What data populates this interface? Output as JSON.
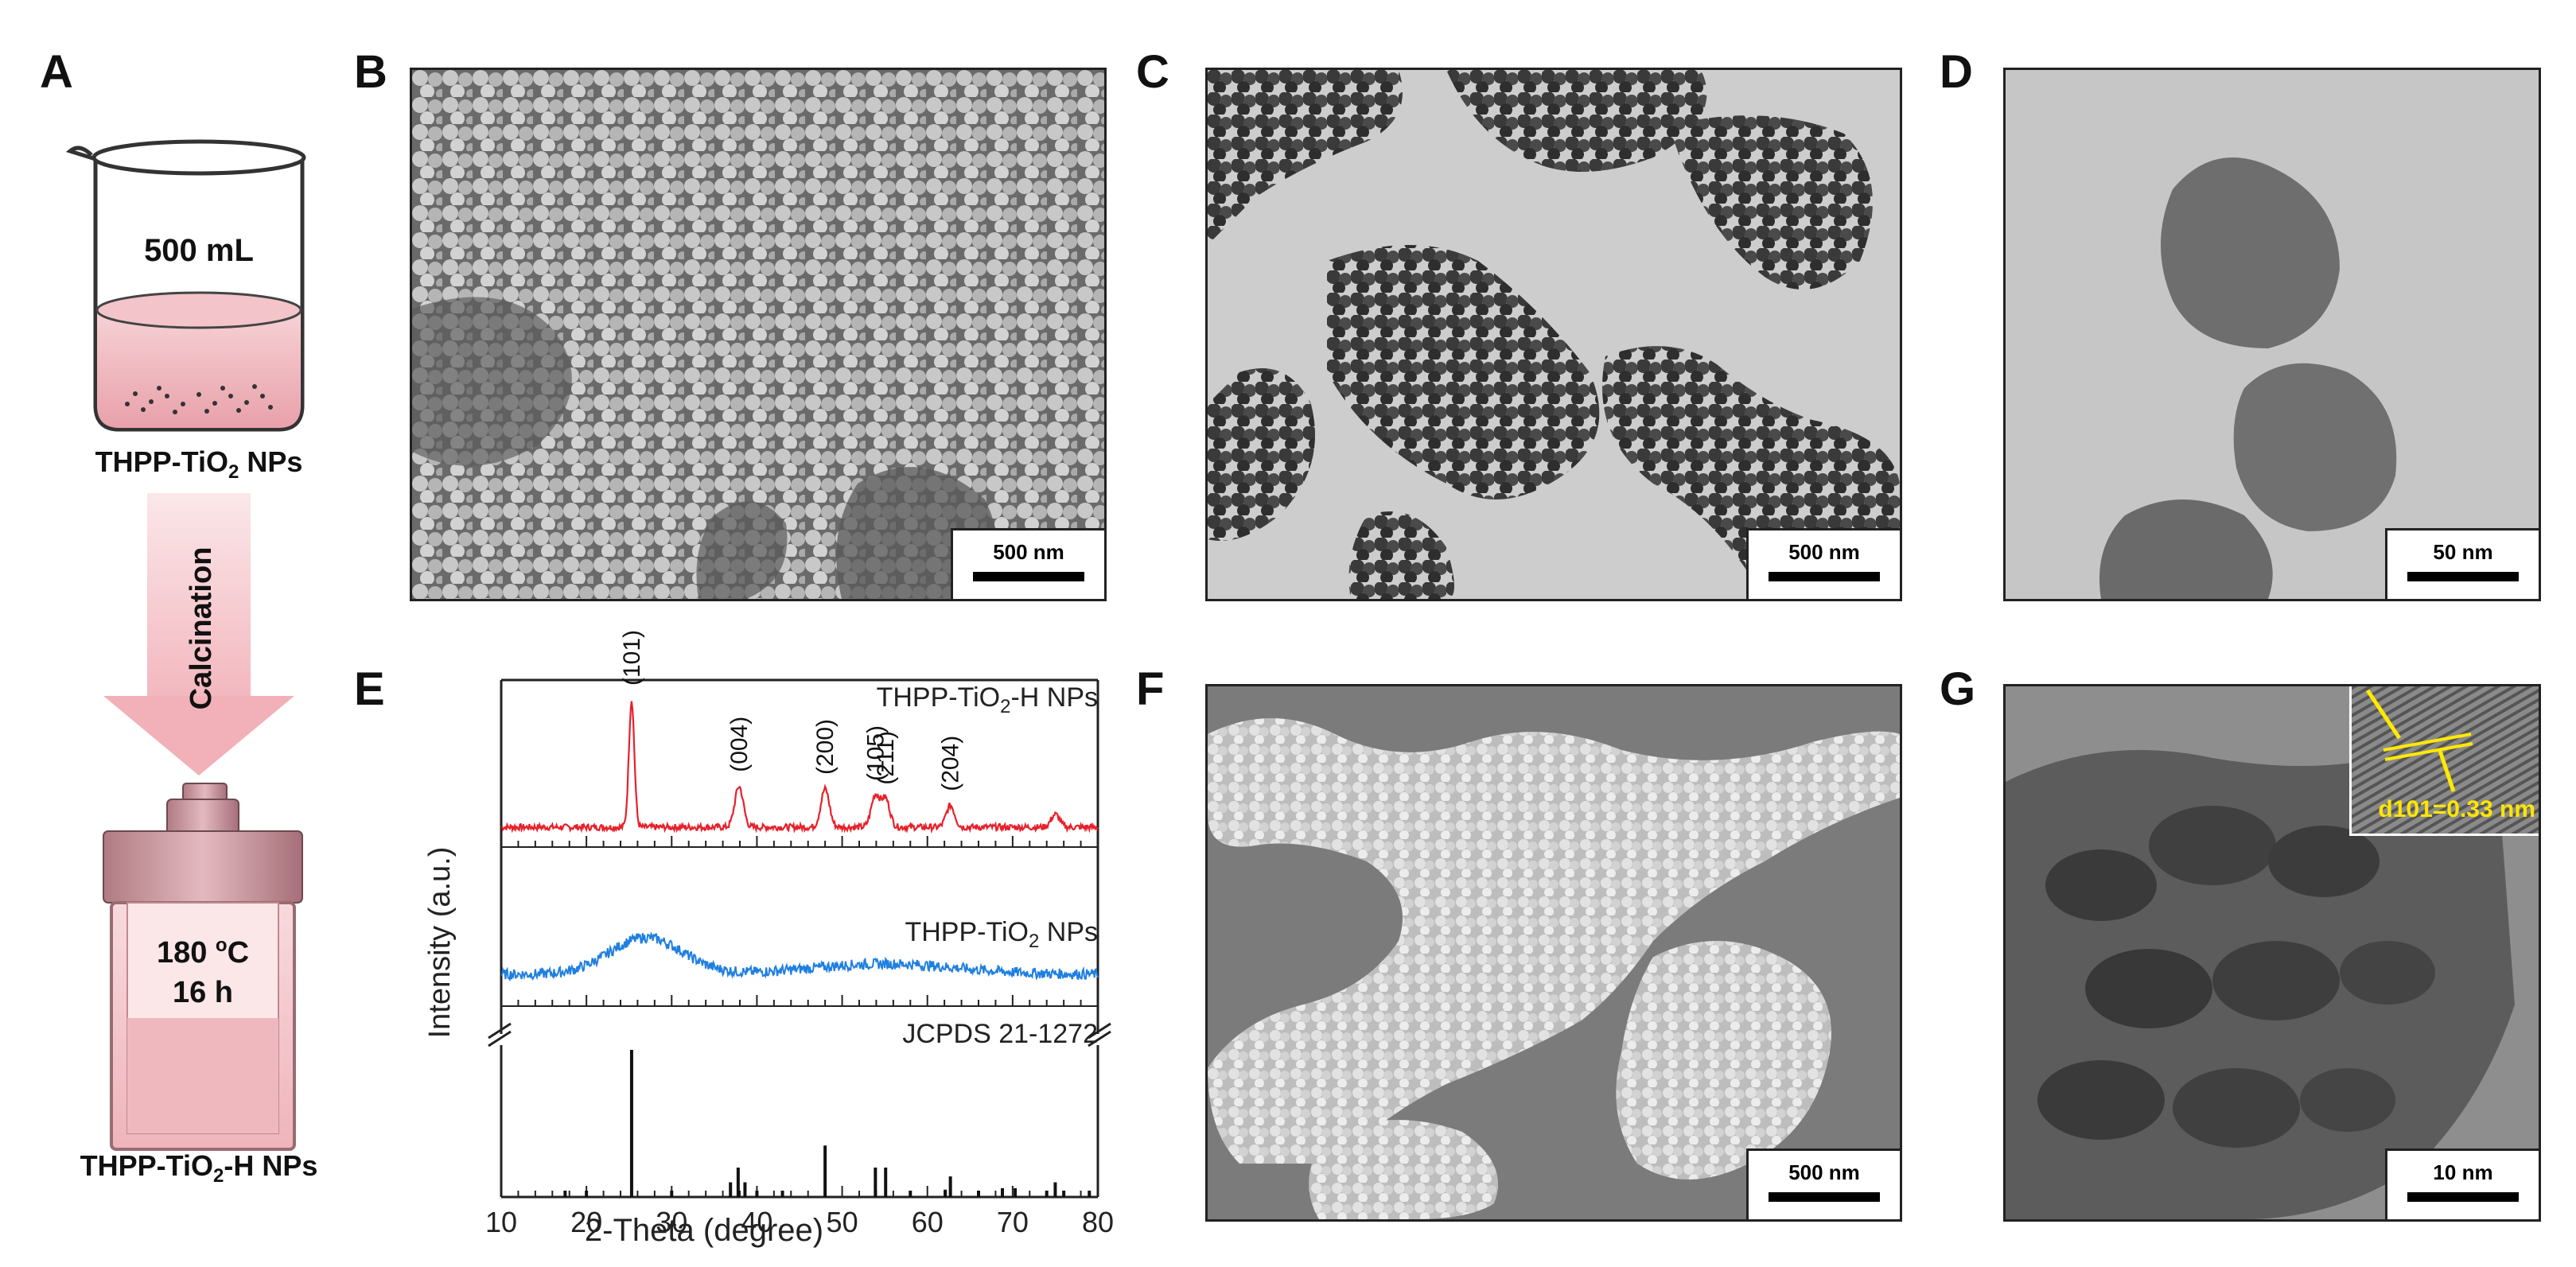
{
  "panels": {
    "A": {
      "letter": "A",
      "beaker_volume": "500 mL",
      "beaker_caption_main": "THPP-TiO",
      "beaker_caption_sub": "2",
      "beaker_caption_tail": " NPs",
      "arrow_label": "Calcination",
      "reactor_temp_value": "180 ",
      "reactor_temp_sup": "o",
      "reactor_temp_unit": "C",
      "reactor_time": "16 h",
      "reactor_caption_main": "THPP-TiO",
      "reactor_caption_sub": "2",
      "reactor_caption_tail": "-H NPs"
    },
    "B": {
      "letter": "B",
      "scale": "500 nm"
    },
    "C": {
      "letter": "C",
      "scale": "500 nm"
    },
    "D": {
      "letter": "D",
      "scale": "50 nm"
    },
    "E": {
      "letter": "E"
    },
    "F": {
      "letter": "F",
      "scale": "500 nm"
    },
    "G": {
      "letter": "G",
      "scale": "10 nm",
      "inset_label": "d101=0.33 nm"
    }
  },
  "chart_data": {
    "type": "line",
    "xlabel": "2-Theta (degree)",
    "ylabel": "Intensity (a.u.)",
    "xlim": [
      10,
      80
    ],
    "xticks": [
      10,
      20,
      30,
      40,
      50,
      60,
      70,
      80
    ],
    "series": [
      {
        "name_main": "THPP-TiO",
        "name_sub": "2",
        "name_tail": "-H NPs",
        "color": "#e8202a",
        "peaks": [
          {
            "x": 25.3,
            "label": "(101)",
            "h": 1.0
          },
          {
            "x": 37.9,
            "label": "(004)",
            "h": 0.32
          },
          {
            "x": 48.0,
            "label": "(200)",
            "h": 0.3
          },
          {
            "x": 53.9,
            "label": "(105)",
            "h": 0.25
          },
          {
            "x": 55.1,
            "label": "(211)",
            "h": 0.22
          },
          {
            "x": 62.7,
            "label": "(204)",
            "h": 0.17
          },
          {
            "x": 75.0,
            "label": "",
            "h": 0.1
          }
        ]
      },
      {
        "name_main": "THPP-TiO",
        "name_sub": "2",
        "name_tail": " NPs",
        "color": "#1f7fe0"
      }
    ],
    "reference": {
      "name": "JCPDS 21-1272",
      "sticks": [
        {
          "x": 25.3,
          "h": 1.0
        },
        {
          "x": 36.9,
          "h": 0.1
        },
        {
          "x": 37.8,
          "h": 0.2
        },
        {
          "x": 38.6,
          "h": 0.1
        },
        {
          "x": 48.0,
          "h": 0.35
        },
        {
          "x": 53.9,
          "h": 0.2
        },
        {
          "x": 55.1,
          "h": 0.2
        },
        {
          "x": 62.1,
          "h": 0.05
        },
        {
          "x": 62.7,
          "h": 0.14
        },
        {
          "x": 68.8,
          "h": 0.06
        },
        {
          "x": 70.3,
          "h": 0.06
        },
        {
          "x": 74.0,
          "h": 0.02
        },
        {
          "x": 75.0,
          "h": 0.1
        },
        {
          "x": 76.0,
          "h": 0.04
        },
        {
          "x": 20.0,
          "h": 0.01
        },
        {
          "x": 17.5,
          "h": 0.01
        },
        {
          "x": 30.0,
          "h": 0.01
        },
        {
          "x": 40.0,
          "h": 0.01
        },
        {
          "x": 43.0,
          "h": 0.01
        },
        {
          "x": 58.0,
          "h": 0.01
        },
        {
          "x": 66.0,
          "h": 0.01
        },
        {
          "x": 79.0,
          "h": 0.01
        }
      ]
    }
  }
}
